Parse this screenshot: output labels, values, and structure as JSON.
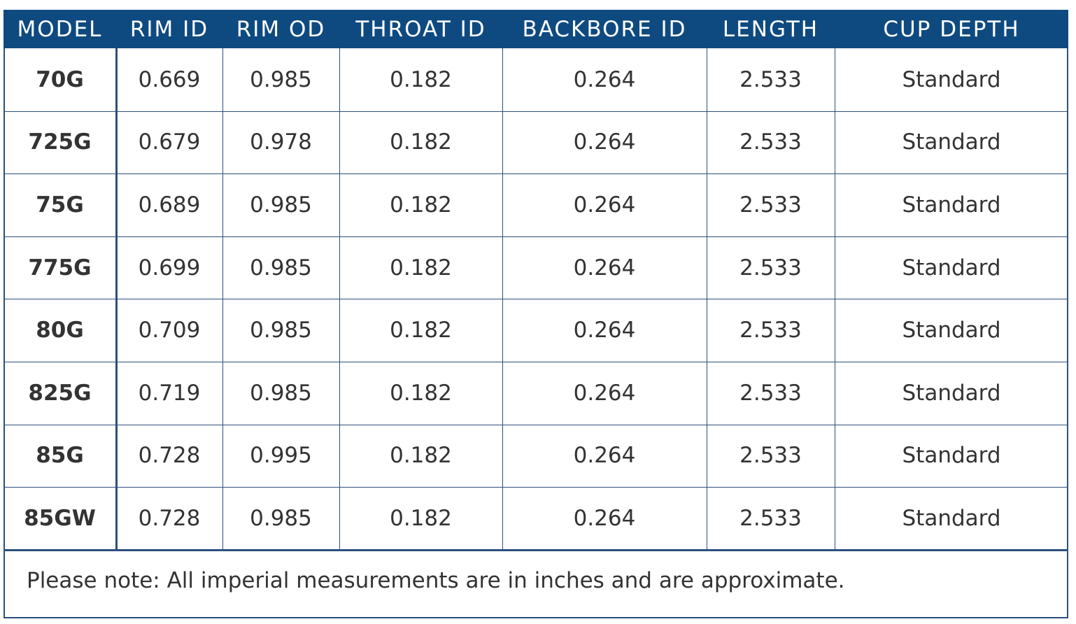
{
  "table": {
    "header": [
      "MODEL",
      "RIM ID",
      "RIM OD",
      "THROAT ID",
      "BACKBORE ID",
      "LENGTH",
      "CUP DEPTH"
    ],
    "rows": [
      [
        "70G",
        "0.669",
        "0.985",
        "0.182",
        "0.264",
        "2.533",
        "Standard"
      ],
      [
        "725G",
        "0.679",
        "0.978",
        "0.182",
        "0.264",
        "2.533",
        "Standard"
      ],
      [
        "75G",
        "0.689",
        "0.985",
        "0.182",
        "0.264",
        "2.533",
        "Standard"
      ],
      [
        "775G",
        "0.699",
        "0.985",
        "0.182",
        "0.264",
        "2.533",
        "Standard"
      ],
      [
        "80G",
        "0.709",
        "0.985",
        "0.182",
        "0.264",
        "2.533",
        "Standard"
      ],
      [
        "825G",
        "0.719",
        "0.985",
        "0.182",
        "0.264",
        "2.533",
        "Standard"
      ],
      [
        "85G",
        "0.728",
        "0.995",
        "0.182",
        "0.264",
        "2.533",
        "Standard"
      ],
      [
        "85GW",
        "0.728",
        "0.985",
        "0.182",
        "0.264",
        "2.533",
        "Standard"
      ]
    ],
    "note": "Please note: All imperial measurements are in inches and are approximate."
  }
}
